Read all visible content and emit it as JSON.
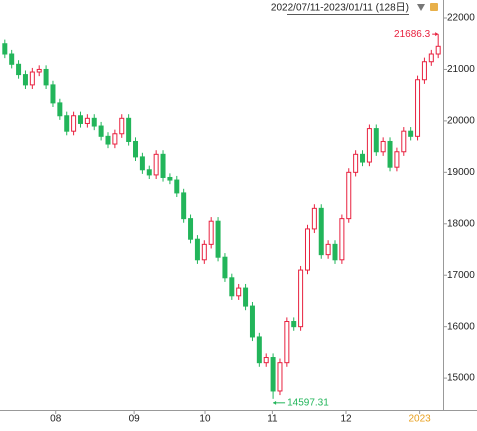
{
  "chart_data": {
    "type": "candlestick",
    "title": "2022/07/11-2023/01/11 (128日)",
    "up_color": "#e8213f",
    "down_color": "#22b55a",
    "xlim": [
      -0.7,
      63.7
    ],
    "xticks": [
      {
        "value": 7.4,
        "label": "08"
      },
      {
        "value": 18.8,
        "label": "09"
      },
      {
        "value": 29.1,
        "label": "10"
      },
      {
        "value": 38.9,
        "label": "11"
      },
      {
        "value": 49.6,
        "label": "12"
      },
      {
        "value": 60.3,
        "label": "2023"
      }
    ],
    "ylim": [
      14380,
      22350
    ],
    "yticks": [
      15000,
      16000,
      17000,
      18000,
      19000,
      20000,
      21000,
      22000
    ],
    "open": [
      21500,
      21300,
      21100,
      20900,
      20700,
      20950,
      21000,
      20700,
      20350,
      20100,
      19800,
      20100,
      19950,
      20050,
      19900,
      19700,
      19550,
      19750,
      20050,
      19600,
      19300,
      19050,
      18950,
      19350,
      18900,
      18850,
      18600,
      18100,
      17700,
      17300,
      17600,
      18050,
      17350,
      16950,
      16600,
      16750,
      16400,
      15800,
      15300,
      15400,
      14750,
      15300,
      16100,
      16000,
      17100,
      17900,
      18300,
      17400,
      17600,
      17300,
      18100,
      19000,
      19350,
      19200,
      19850,
      19400,
      19600,
      19100,
      19400,
      19800,
      19700,
      20800,
      21150,
      21300
    ],
    "high": [
      21580,
      21380,
      21180,
      20980,
      21030,
      21080,
      21080,
      20780,
      20430,
      20180,
      20180,
      20180,
      20130,
      20130,
      19980,
      19780,
      19830,
      20130,
      20130,
      19680,
      19380,
      19130,
      19430,
      19430,
      18980,
      18930,
      18680,
      18180,
      17780,
      17680,
      18130,
      18130,
      17430,
      17030,
      16830,
      16830,
      16480,
      15880,
      15480,
      15480,
      15380,
      16180,
      16180,
      17180,
      17980,
      18380,
      18380,
      17680,
      17680,
      18180,
      19080,
      19430,
      19430,
      19930,
      19930,
      19680,
      19680,
      19480,
      19880,
      19880,
      20880,
      21230,
      21380,
      21686.3
    ],
    "low": [
      21220,
      21020,
      20820,
      20620,
      20620,
      20870,
      20620,
      20270,
      20020,
      19720,
      19720,
      19870,
      19870,
      19820,
      19620,
      19470,
      19470,
      19670,
      19520,
      19220,
      18970,
      18870,
      18870,
      18820,
      18770,
      18520,
      18020,
      17620,
      17220,
      17220,
      17520,
      17270,
      16870,
      16520,
      16520,
      16320,
      15720,
      15220,
      15220,
      14597.31,
      14670,
      15220,
      15920,
      15920,
      17020,
      17820,
      17320,
      17320,
      17220,
      17220,
      18020,
      18920,
      19120,
      19120,
      19320,
      19320,
      19020,
      19020,
      19320,
      19620,
      19620,
      20720,
      21070,
      21220
    ],
    "close": [
      21300,
      21100,
      20900,
      20700,
      20950,
      21000,
      20700,
      20350,
      20100,
      19800,
      20100,
      19950,
      20050,
      19900,
      19700,
      19550,
      19750,
      20050,
      19600,
      19300,
      19050,
      18950,
      19350,
      18900,
      18850,
      18600,
      18100,
      17700,
      17300,
      17600,
      18050,
      17350,
      16950,
      16600,
      16750,
      16400,
      15800,
      15300,
      15400,
      14750,
      15300,
      16100,
      16000,
      17100,
      17900,
      18300,
      17400,
      17600,
      17300,
      18100,
      19000,
      19350,
      19200,
      19850,
      19400,
      19600,
      19100,
      19400,
      19800,
      19700,
      20800,
      21150,
      21300,
      21450
    ],
    "annotations": [
      "21686.3",
      "14597.31"
    ]
  }
}
